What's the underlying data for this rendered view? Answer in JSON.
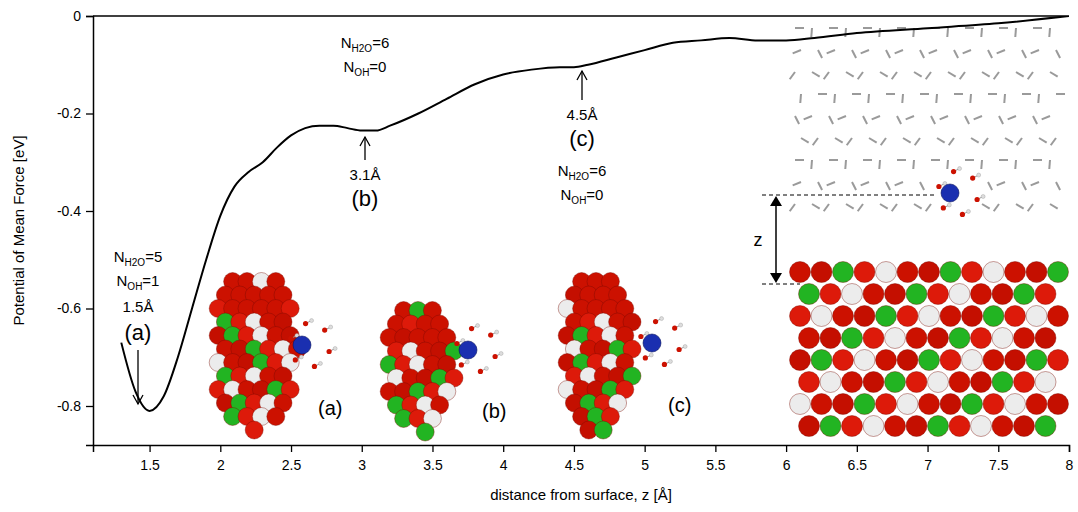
{
  "chart_data": {
    "type": "line",
    "x_label": "distance from surface, z [Å]",
    "y_label": "Potential of Mean Force [eV]",
    "x": [
      1.3,
      1.4,
      1.5,
      1.6,
      1.7,
      1.8,
      1.9,
      2.0,
      2.1,
      2.2,
      2.3,
      2.4,
      2.5,
      2.6,
      2.7,
      2.8,
      2.9,
      3.0,
      3.1,
      3.2,
      3.4,
      3.6,
      3.8,
      4.0,
      4.2,
      4.4,
      4.5,
      4.6,
      4.8,
      5.0,
      5.2,
      5.4,
      5.6,
      5.8,
      6.0,
      6.2,
      6.5,
      7.0,
      7.5,
      8.0
    ],
    "values": [
      -0.67,
      -0.77,
      -0.81,
      -0.78,
      -0.7,
      -0.6,
      -0.5,
      -0.41,
      -0.35,
      -0.32,
      -0.3,
      -0.27,
      -0.245,
      -0.23,
      -0.225,
      -0.225,
      -0.23,
      -0.235,
      -0.235,
      -0.225,
      -0.2,
      -0.17,
      -0.14,
      -0.12,
      -0.11,
      -0.105,
      -0.105,
      -0.1,
      -0.085,
      -0.07,
      -0.055,
      -0.05,
      -0.045,
      -0.05,
      -0.05,
      -0.045,
      -0.035,
      -0.025,
      -0.015,
      0
    ],
    "color": "#000000",
    "xlim": [
      1.1,
      8
    ],
    "ylim": [
      -0.88,
      0
    ],
    "xticks": [
      1.5,
      2,
      2.5,
      3,
      3.5,
      4,
      4.5,
      5,
      5.5,
      6,
      6.5,
      7,
      7.5,
      8
    ],
    "yticks": [
      -0.8,
      -0.6,
      -0.4,
      -0.2,
      0
    ],
    "grid": false,
    "annotations": [
      {
        "lines": [
          [
            "N",
            "H2O",
            "=5"
          ],
          [
            "N",
            "OH",
            "=1"
          ]
        ],
        "distance": "1.5Å",
        "label": "(a)"
      },
      {
        "lines": [
          [
            "N",
            "H2O",
            "=6"
          ],
          [
            "N",
            "OH",
            "=0"
          ]
        ],
        "distance": "3.1Å",
        "label": "(b)"
      },
      {
        "lines": [
          [
            "N",
            "H2O",
            "=6"
          ],
          [
            "N",
            "OH",
            "=0"
          ]
        ],
        "distance": "4.5Å",
        "label": "(c)"
      }
    ],
    "inset_labels": [
      "(a)",
      "(b)",
      "(c)"
    ],
    "z_label": "z"
  }
}
